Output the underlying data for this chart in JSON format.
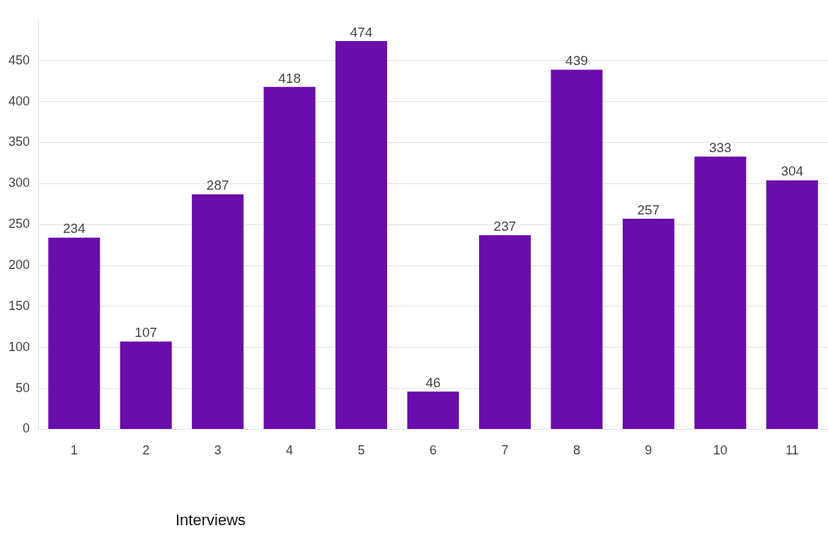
{
  "chart_data": {
    "type": "bar",
    "xlabel": "Interviews",
    "categories": [
      "1",
      "2",
      "3",
      "4",
      "5",
      "6",
      "7",
      "8",
      "9",
      "10",
      "11"
    ],
    "values": [
      234,
      107,
      287,
      418,
      474,
      46,
      237,
      439,
      257,
      333,
      304
    ],
    "color": "#6a0dab",
    "ylim": [
      0,
      500
    ],
    "yticks": [
      0,
      50,
      100,
      150,
      200,
      250,
      300,
      350,
      400,
      450
    ],
    "grid": "y",
    "data_labels": true,
    "legend": false
  }
}
